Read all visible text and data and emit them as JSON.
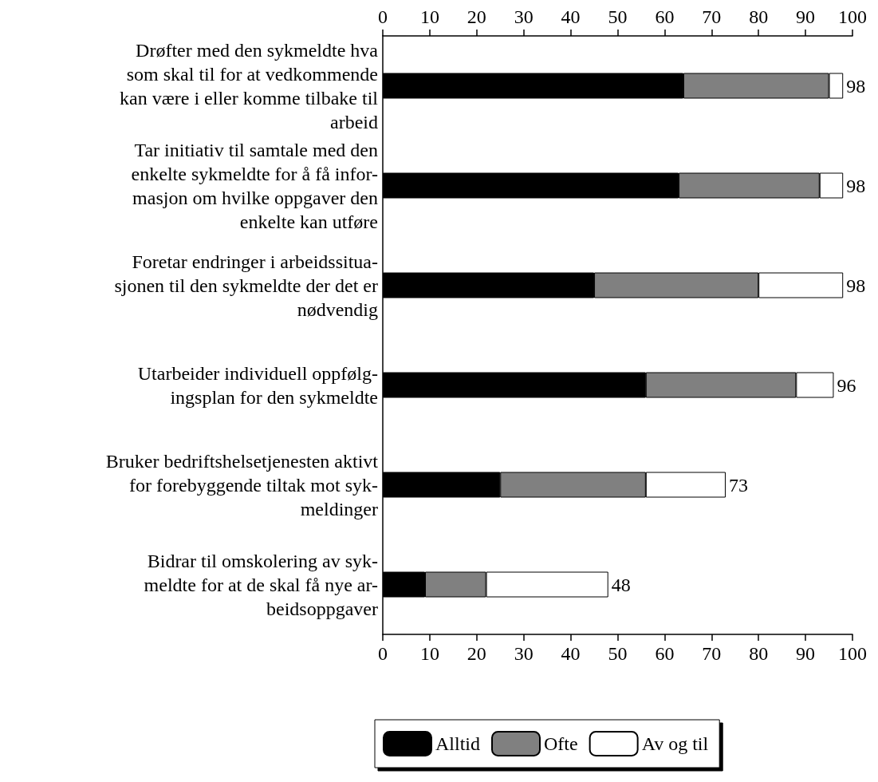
{
  "chart_data": {
    "type": "bar",
    "orientation": "horizontal",
    "stacked": true,
    "categories": [
      "Drøfter med den sykmeldte hva\nsom skal til for at vedkommende\nkan være i eller komme tilbake til\narbeid",
      "Tar initiativ til samtale med den\nenkelte sykmeldte for å få infor-\nmasjon om hvilke oppgaver den\nenkelte kan utføre",
      "Foretar endringer i arbeidssitua-\nsjonen til den sykmeldte der det er\nnødvendig",
      "Utarbeider individuell oppfølg-\ningsplan for den sykmeldte",
      "Bruker bedriftshelsetjenesten aktivt\nfor forebyggende tiltak mot syk-\nmeldinger",
      "Bidrar til omskolering av syk-\nmeldte for at de skal få nye ar-\nbeidsoppgaver"
    ],
    "series": [
      {
        "name": "Alltid",
        "color": "#000000",
        "values": [
          64,
          63,
          45,
          56,
          25,
          9
        ]
      },
      {
        "name": "Ofte",
        "color": "#808080",
        "values": [
          31,
          30,
          35,
          32,
          31,
          13
        ]
      },
      {
        "name": "Av og til",
        "color": "#ffffff",
        "values": [
          3,
          5,
          18,
          8,
          17,
          26
        ]
      }
    ],
    "totals": [
      "98",
      "98",
      "98",
      "96",
      "73",
      "48"
    ],
    "xlim": [
      0,
      100
    ],
    "xticks": [
      0,
      10,
      20,
      30,
      40,
      50,
      60,
      70,
      80,
      90,
      100
    ],
    "x2lim": [
      0,
      100
    ],
    "x2ticks": [
      0,
      10,
      20,
      30,
      40,
      50,
      60,
      70,
      80,
      90,
      100
    ],
    "grid": false,
    "legend": "bottom"
  }
}
